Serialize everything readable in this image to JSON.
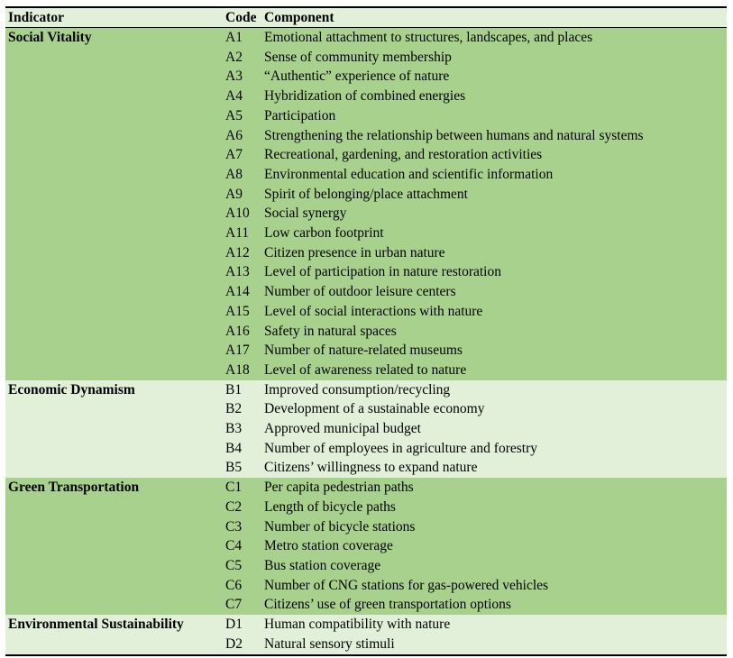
{
  "table": {
    "headers": [
      "Indicator",
      "Code",
      "Component"
    ],
    "sections": [
      {
        "indicator": "Social Vitality",
        "shade": "dark",
        "rows": [
          {
            "code": "A1",
            "component": "Emotional attachment to structures, landscapes, and places"
          },
          {
            "code": "A2",
            "component": "Sense of community membership"
          },
          {
            "code": "A3",
            "component": "“Authentic” experience of nature"
          },
          {
            "code": "A4",
            "component": "Hybridization of combined energies"
          },
          {
            "code": "A5",
            "component": "Participation"
          },
          {
            "code": "A6",
            "component": "Strengthening the relationship between humans and natural systems"
          },
          {
            "code": "A7",
            "component": "Recreational, gardening, and restoration activities"
          },
          {
            "code": "A8",
            "component": "Environmental education and scientific information"
          },
          {
            "code": "A9",
            "component": "Spirit of belonging/place attachment"
          },
          {
            "code": "A10",
            "component": "Social synergy"
          },
          {
            "code": "A11",
            "component": "Low carbon footprint"
          },
          {
            "code": "A12",
            "component": "Citizen presence in urban nature"
          },
          {
            "code": "A13",
            "component": "Level of participation in nature restoration"
          },
          {
            "code": "A14",
            "component": "Number of outdoor leisure centers"
          },
          {
            "code": "A15",
            "component": "Level of social interactions with nature"
          },
          {
            "code": "A16",
            "component": "Safety in natural spaces"
          },
          {
            "code": "A17",
            "component": "Number of nature-related museums"
          },
          {
            "code": "A18",
            "component": "Level of awareness related to nature"
          }
        ]
      },
      {
        "indicator": "Economic Dynamism",
        "shade": "light",
        "rows": [
          {
            "code": "B1",
            "component": "Improved consumption/recycling"
          },
          {
            "code": "B2",
            "component": "Development of a sustainable economy"
          },
          {
            "code": "B3",
            "component": "Approved municipal budget"
          },
          {
            "code": "B4",
            "component": "Number of employees in agriculture and forestry"
          },
          {
            "code": "B5",
            "component": "Citizens’ willingness to expand nature"
          }
        ]
      },
      {
        "indicator": "Green Transportation",
        "shade": "dark",
        "rows": [
          {
            "code": "C1",
            "component": "Per capita pedestrian paths"
          },
          {
            "code": "C2",
            "component": "Length of bicycle paths"
          },
          {
            "code": "C3",
            "component": "Number of bicycle stations"
          },
          {
            "code": "C4",
            "component": "Metro station coverage"
          },
          {
            "code": "C5",
            "component": "Bus station coverage"
          },
          {
            "code": "C6",
            "component": "Number of CNG stations for gas-powered vehicles"
          },
          {
            "code": "C7",
            "component": "Citizens’ use of green transportation options"
          }
        ]
      },
      {
        "indicator": "Environmental Sustainability",
        "shade": "light",
        "rows": [
          {
            "code": "D1",
            "component": "Human compatibility with nature"
          },
          {
            "code": "D2",
            "component": "Natural sensory stimuli"
          }
        ]
      }
    ]
  },
  "colors": {
    "band_dark": "#A9D18E",
    "band_light": "#E2F0D9",
    "header_bg": "#E2F0D9",
    "border": "#000000",
    "text": "#000000",
    "page_bg": "#FFFFFF"
  }
}
